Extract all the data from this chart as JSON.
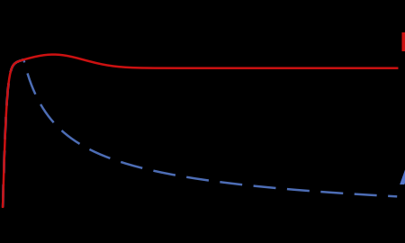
{
  "background_color": "#000000",
  "curve_A_color": "#4d6db5",
  "curve_B_color": "#cc1111",
  "label_A": "A",
  "label_B": "B",
  "label_color_A": "#5577cc",
  "label_color_B": "#cc1111",
  "label_fontsize": 20,
  "figsize": [
    4.5,
    2.7
  ],
  "dpi": 100
}
